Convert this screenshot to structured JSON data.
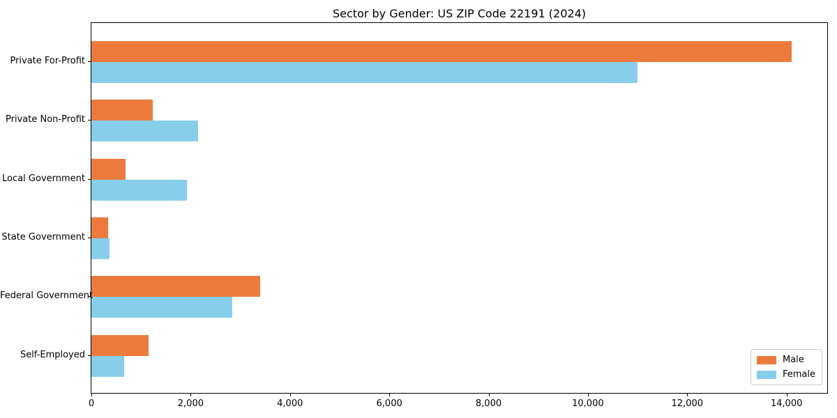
{
  "chart_data": {
    "type": "bar",
    "orientation": "horizontal",
    "title": "Sector by Gender: US ZIP Code 22191 (2024)",
    "categories": [
      "Private For-Profit",
      "Private Non-Profit",
      "Local Government",
      "State Government",
      "Federal Government",
      "Self-Employed"
    ],
    "series": [
      {
        "name": "Male",
        "color": "#EC7A3C",
        "values": [
          14100,
          1230,
          690,
          340,
          3400,
          1150
        ]
      },
      {
        "name": "Female",
        "color": "#87CEEB",
        "values": [
          11000,
          2150,
          1920,
          365,
          2840,
          660
        ]
      }
    ],
    "xlabel": "",
    "ylabel": "",
    "xlim": [
      0,
      14820
    ],
    "x_ticks": [
      0,
      2000,
      4000,
      6000,
      8000,
      10000,
      12000,
      14000
    ],
    "x_tick_labels": [
      "0",
      "2,000",
      "4,000",
      "6,000",
      "8,000",
      "10,000",
      "12,000",
      "14,000"
    ],
    "grid": false,
    "legend_position": "lower right",
    "spine_color": "#000000",
    "background_color": "#ffffff"
  }
}
